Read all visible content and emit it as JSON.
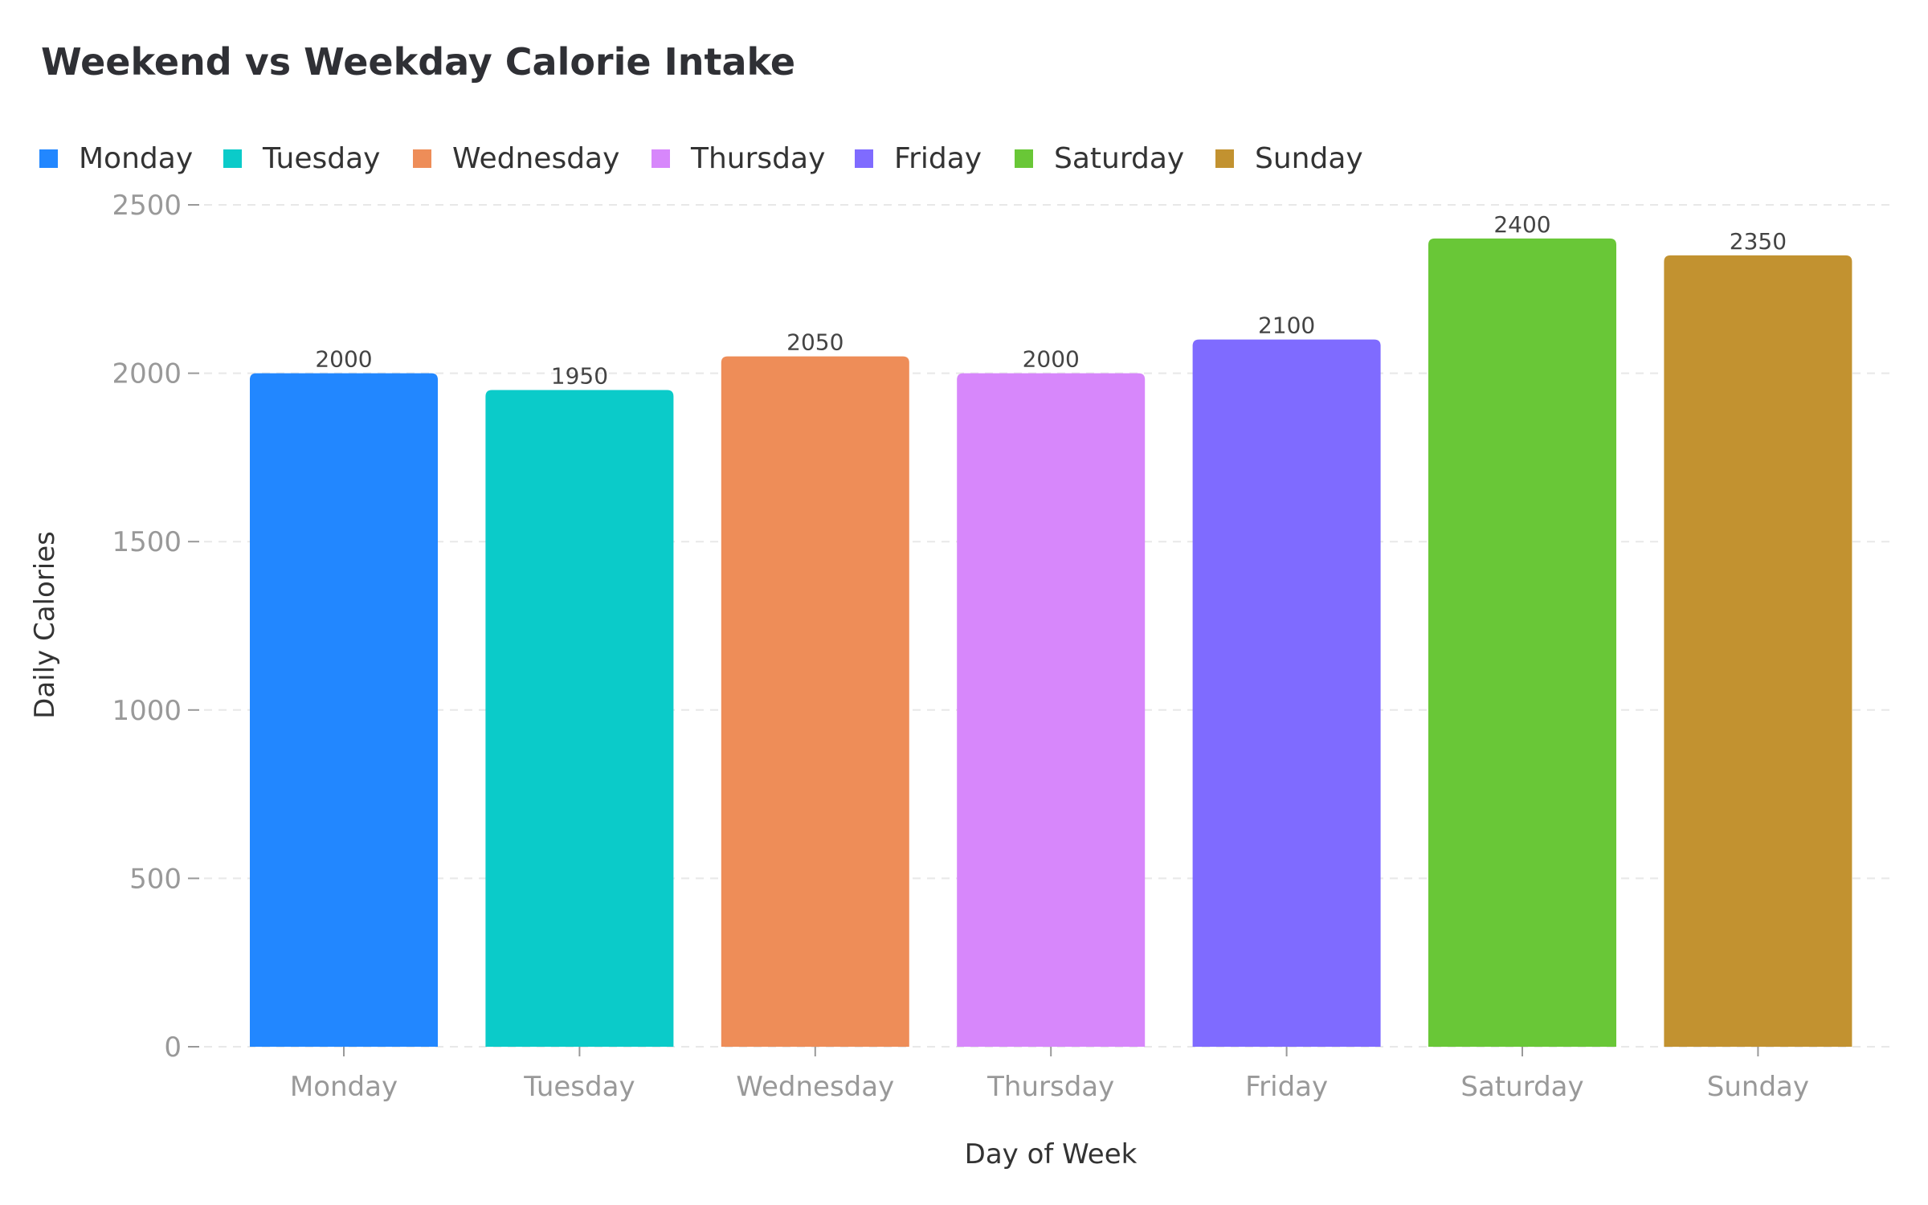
{
  "chart_data": {
    "type": "bar",
    "title": "Weekend vs Weekday Calorie Intake",
    "xlabel": "Day of Week",
    "ylabel": "Daily Calories",
    "categories": [
      "Monday",
      "Tuesday",
      "Wednesday",
      "Thursday",
      "Friday",
      "Saturday",
      "Sunday"
    ],
    "values": [
      2000,
      1950,
      2050,
      2000,
      2100,
      2400,
      2350
    ],
    "colors": [
      "#2287ff",
      "#0bcbc9",
      "#ee8d58",
      "#d787fb",
      "#7f6bff",
      "#69c737",
      "#c29230"
    ],
    "ylim": [
      0,
      2500
    ],
    "yticks": [
      0,
      500,
      1000,
      1500,
      2000,
      2500
    ],
    "grid": true,
    "legend_position": "top-left",
    "data_labels": true
  }
}
